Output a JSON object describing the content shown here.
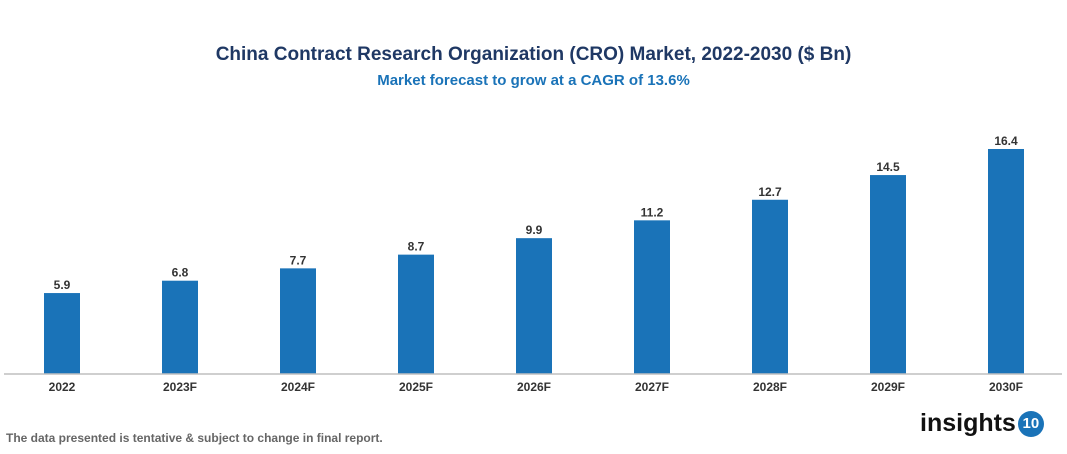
{
  "chart_data": {
    "type": "bar",
    "title": "China Contract Research Organization (CRO) Market, 2022-2030 ($ Bn)",
    "subtitle": "Market forecast to grow at a CAGR of 13.6%",
    "categories": [
      "2022",
      "2023F",
      "2024F",
      "2025F",
      "2026F",
      "2027F",
      "2028F",
      "2029F",
      "2030F"
    ],
    "values": [
      5.9,
      6.8,
      7.7,
      8.7,
      9.9,
      11.2,
      12.7,
      14.5,
      16.4
    ],
    "value_labels": [
      "5.9",
      "6.8",
      "7.7",
      "8.7",
      "9.9",
      "11.2",
      "12.7",
      "14.5",
      "16.4"
    ],
    "bar_color": "#1a73b8",
    "grid": false
  },
  "footer": {
    "note": "The data presented is tentative & subject to change in final report.",
    "logo_text": "insights",
    "logo_number": "10"
  }
}
